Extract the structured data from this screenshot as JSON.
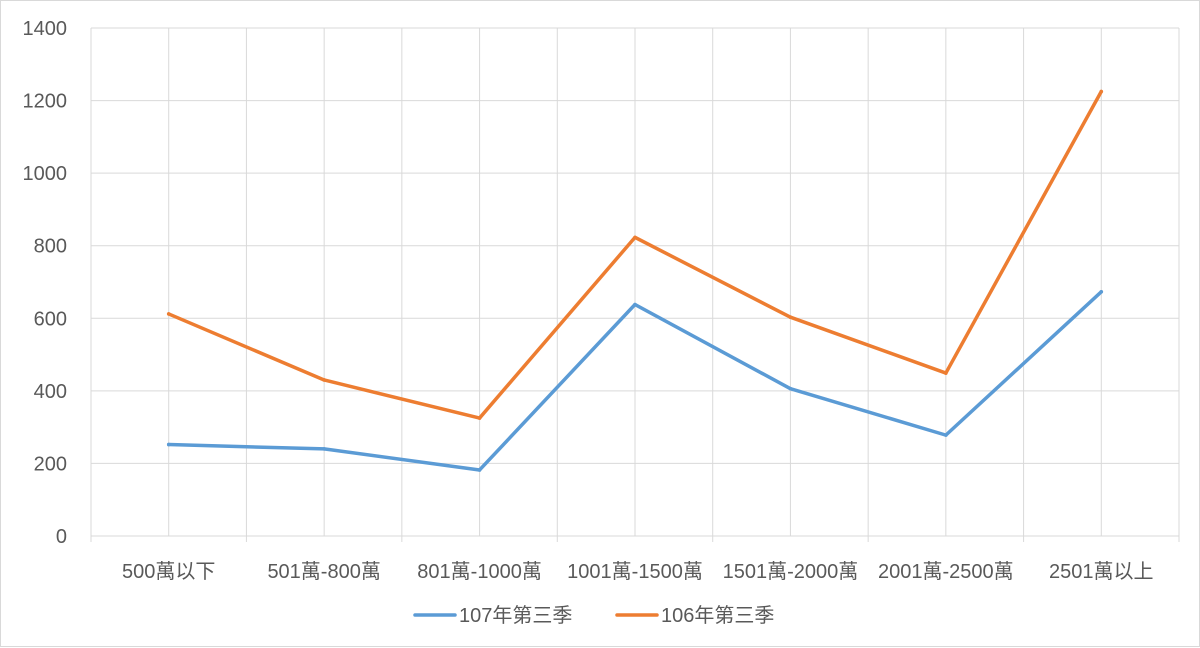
{
  "chart_data": {
    "type": "line",
    "categories": [
      "500萬以下",
      "501萬-800萬",
      "801萬-1000萬",
      "1001萬-1500萬",
      "1501萬-2000萬",
      "2001萬-2500萬",
      "2501萬以上"
    ],
    "series": [
      {
        "name": "107年第三季",
        "color": "#5b9bd5",
        "values": [
          252,
          240,
          182,
          638,
          406,
          278,
          673
        ]
      },
      {
        "name": "106年第三季",
        "color": "#ed7d31",
        "values": [
          612,
          430,
          325,
          823,
          603,
          449,
          1225
        ]
      }
    ],
    "ylim": [
      0,
      1400
    ],
    "yticks": [
      0,
      200,
      400,
      600,
      800,
      1000,
      1200,
      1400
    ],
    "grid": true,
    "legend_position": "bottom",
    "title": "",
    "xlabel": "",
    "ylabel": ""
  }
}
